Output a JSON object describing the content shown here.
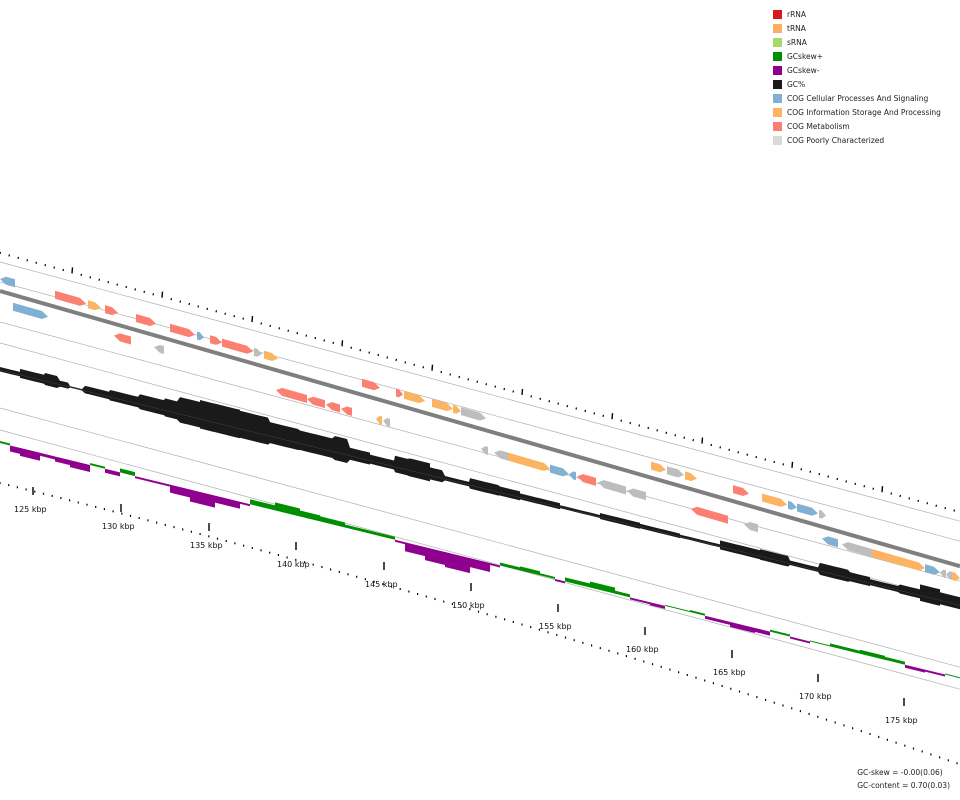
{
  "legend": {
    "items": [
      {
        "label": "rRNA",
        "color": "#d7191c"
      },
      {
        "label": "tRNA",
        "color": "#fdae61"
      },
      {
        "label": "sRNA",
        "color": "#a6d96a"
      },
      {
        "label": "GCskew+",
        "color": "#008f00"
      },
      {
        "label": "GCskew-",
        "color": "#8f008f"
      },
      {
        "label": "GC%",
        "color": "#1a1a1a"
      },
      {
        "label": "COG Cellular Processes And Signaling",
        "color": "#80b1d3"
      },
      {
        "label": "COG Information Storage And Processing",
        "color": "#fdb462"
      },
      {
        "label": "COG Metabolism",
        "color": "#fb8072"
      },
      {
        "label": "COG Poorly Characterized",
        "color": "#d9d9d9"
      }
    ]
  },
  "axis": {
    "unit": "kbp",
    "labels": [
      "125 kbp",
      "130 kbp",
      "135 kbp",
      "140 kbp",
      "145 kbp",
      "150 kbp",
      "155 kbp",
      "160 kbp",
      "165 kbp",
      "170 kbp",
      "175 kbp"
    ]
  },
  "stats": {
    "gc_skew": "GC-skew = -0.00(0.06)",
    "gc_content": "GC-content = 0.70(0.03)"
  },
  "features": {
    "forward_outer": [
      {
        "s": 0,
        "e": 15,
        "cat": "cps",
        "str": "-"
      },
      {
        "s": 55,
        "e": 86,
        "cat": "met",
        "str": "+"
      },
      {
        "s": 88,
        "e": 101,
        "cat": "isp",
        "str": "+"
      },
      {
        "s": 105,
        "e": 118,
        "cat": "met",
        "str": "+"
      },
      {
        "s": 136,
        "e": 156,
        "cat": "met",
        "str": "+"
      },
      {
        "s": 170,
        "e": 195,
        "cat": "met",
        "str": "+"
      },
      {
        "s": 197,
        "e": 204,
        "cat": "cps",
        "str": "+"
      },
      {
        "s": 210,
        "e": 222,
        "cat": "met",
        "str": "+"
      },
      {
        "s": 222,
        "e": 253,
        "cat": "met",
        "str": "+"
      },
      {
        "s": 254,
        "e": 262,
        "cat": "poor",
        "str": "+"
      },
      {
        "s": 264,
        "e": 278,
        "cat": "isp",
        "str": "+"
      },
      {
        "s": 362,
        "e": 380,
        "cat": "met",
        "str": "+"
      },
      {
        "s": 396,
        "e": 403,
        "cat": "met",
        "str": "+"
      },
      {
        "s": 404,
        "e": 425,
        "cat": "isp",
        "str": "+"
      },
      {
        "s": 432,
        "e": 453,
        "cat": "isp",
        "str": "+"
      },
      {
        "s": 453,
        "e": 461,
        "cat": "isp",
        "str": "+"
      },
      {
        "s": 461,
        "e": 486,
        "cat": "poor",
        "str": "+"
      },
      {
        "s": 651,
        "e": 666,
        "cat": "isp",
        "str": "+"
      },
      {
        "s": 667,
        "e": 684,
        "cat": "poor",
        "str": "+"
      },
      {
        "s": 685,
        "e": 697,
        "cat": "isp",
        "str": "+"
      },
      {
        "s": 733,
        "e": 749,
        "cat": "met",
        "str": "+"
      },
      {
        "s": 762,
        "e": 787,
        "cat": "isp",
        "str": "+"
      },
      {
        "s": 788,
        "e": 797,
        "cat": "cps",
        "str": "+"
      },
      {
        "s": 797,
        "e": 818,
        "cat": "cps",
        "str": "+"
      },
      {
        "s": 819,
        "e": 826,
        "cat": "poor",
        "str": "+"
      }
    ],
    "forward_inner": [
      {
        "s": 13,
        "e": 48,
        "cat": "cps",
        "str": "+"
      },
      {
        "s": 114,
        "e": 131,
        "cat": "met",
        "str": "-"
      },
      {
        "s": 154,
        "e": 164,
        "cat": "poor",
        "str": "-"
      }
    ],
    "reverse_inner": [
      {
        "s": 276,
        "e": 307,
        "cat": "met",
        "str": "-"
      },
      {
        "s": 307,
        "e": 325,
        "cat": "met",
        "str": "-"
      },
      {
        "s": 326,
        "e": 340,
        "cat": "met",
        "str": "-"
      },
      {
        "s": 341,
        "e": 352,
        "cat": "met",
        "str": "-"
      },
      {
        "s": 376,
        "e": 382,
        "cat": "isp",
        "str": "-"
      },
      {
        "s": 383,
        "e": 390,
        "cat": "poor",
        "str": "-"
      },
      {
        "s": 481,
        "e": 488,
        "cat": "poor",
        "str": "-"
      },
      {
        "s": 494,
        "e": 508,
        "cat": "poor",
        "str": "-"
      },
      {
        "s": 508,
        "e": 550,
        "cat": "isp",
        "str": "+"
      },
      {
        "s": 550,
        "e": 569,
        "cat": "cps",
        "str": "+"
      },
      {
        "s": 569,
        "e": 576,
        "cat": "cps",
        "str": "-"
      },
      {
        "s": 577,
        "e": 596,
        "cat": "met",
        "str": "-"
      },
      {
        "s": 598,
        "e": 626,
        "cat": "poor",
        "str": "-"
      },
      {
        "s": 627,
        "e": 646,
        "cat": "poor",
        "str": "-"
      },
      {
        "s": 691,
        "e": 728,
        "cat": "met",
        "str": "-"
      },
      {
        "s": 744,
        "e": 758,
        "cat": "poor",
        "str": "-"
      }
    ],
    "reverse_outer": [
      {
        "s": 822,
        "e": 838,
        "cat": "cps",
        "str": "-"
      },
      {
        "s": 842,
        "e": 872,
        "cat": "poor",
        "str": "-"
      },
      {
        "s": 872,
        "e": 925,
        "cat": "isp",
        "str": "+"
      },
      {
        "s": 925,
        "e": 940,
        "cat": "cps",
        "str": "+"
      },
      {
        "s": 940,
        "e": 946,
        "cat": "poor",
        "str": "-"
      },
      {
        "s": 946,
        "e": 952,
        "cat": "poor",
        "str": "-"
      },
      {
        "s": 952,
        "e": 960,
        "cat": "isp",
        "str": "+"
      }
    ]
  },
  "gc_content": [
    [
      0,
      3
    ],
    [
      20,
      6
    ],
    [
      45,
      8
    ],
    [
      60,
      4
    ],
    [
      70,
      1
    ],
    [
      85,
      5
    ],
    [
      110,
      7
    ],
    [
      140,
      10
    ],
    [
      165,
      12
    ],
    [
      180,
      17
    ],
    [
      200,
      19
    ],
    [
      240,
      18
    ],
    [
      270,
      14
    ],
    [
      300,
      13
    ],
    [
      335,
      16
    ],
    [
      350,
      8
    ],
    [
      370,
      6
    ],
    [
      395,
      11
    ],
    [
      410,
      12
    ],
    [
      430,
      8
    ],
    [
      445,
      3
    ],
    [
      470,
      7
    ],
    [
      500,
      6
    ],
    [
      520,
      4
    ],
    [
      560,
      2
    ],
    [
      600,
      4
    ],
    [
      640,
      3
    ],
    [
      680,
      2
    ],
    [
      720,
      6
    ],
    [
      760,
      7
    ],
    [
      790,
      3
    ],
    [
      820,
      8
    ],
    [
      850,
      6
    ],
    [
      870,
      4
    ],
    [
      900,
      6
    ],
    [
      920,
      11
    ],
    [
      940,
      8
    ],
    [
      960,
      5
    ]
  ],
  "gc_skew": [
    [
      0,
      2
    ],
    [
      10,
      -6
    ],
    [
      20,
      -8
    ],
    [
      40,
      -3
    ],
    [
      55,
      -5
    ],
    [
      70,
      -7
    ],
    [
      90,
      2
    ],
    [
      105,
      -4
    ],
    [
      120,
      4
    ],
    [
      135,
      -2
    ],
    [
      155,
      -2
    ],
    [
      170,
      -8
    ],
    [
      190,
      -12
    ],
    [
      215,
      -7
    ],
    [
      240,
      -2
    ],
    [
      250,
      5
    ],
    [
      275,
      8
    ],
    [
      300,
      6
    ],
    [
      320,
      5
    ],
    [
      345,
      3
    ],
    [
      370,
      3
    ],
    [
      395,
      -2
    ],
    [
      405,
      -9
    ],
    [
      425,
      -13
    ],
    [
      445,
      -15
    ],
    [
      470,
      -9
    ],
    [
      490,
      -2
    ],
    [
      500,
      3
    ],
    [
      520,
      4
    ],
    [
      540,
      2
    ],
    [
      555,
      -2
    ],
    [
      565,
      4
    ],
    [
      590,
      6
    ],
    [
      615,
      3
    ],
    [
      630,
      -2
    ],
    [
      650,
      -3
    ],
    [
      665,
      1
    ],
    [
      690,
      2
    ],
    [
      705,
      -3
    ],
    [
      730,
      -5
    ],
    [
      755,
      -4
    ],
    [
      770,
      2
    ],
    [
      790,
      -2
    ],
    [
      810,
      1
    ],
    [
      830,
      3
    ],
    [
      860,
      4
    ],
    [
      885,
      3
    ],
    [
      905,
      -3
    ],
    [
      925,
      -2
    ],
    [
      945,
      1
    ],
    [
      960,
      0
    ]
  ],
  "colors": {
    "backbone": "#7f7f7f",
    "guide": "#b0b0b0",
    "tick": "#000000",
    "gc": "#1a1a1a",
    "skew_pos": "#008f00",
    "skew_neg": "#8f008f",
    "cps": "#80b1d3",
    "isp": "#fdb462",
    "met": "#fb8072",
    "poor": "#bdbdbd"
  }
}
